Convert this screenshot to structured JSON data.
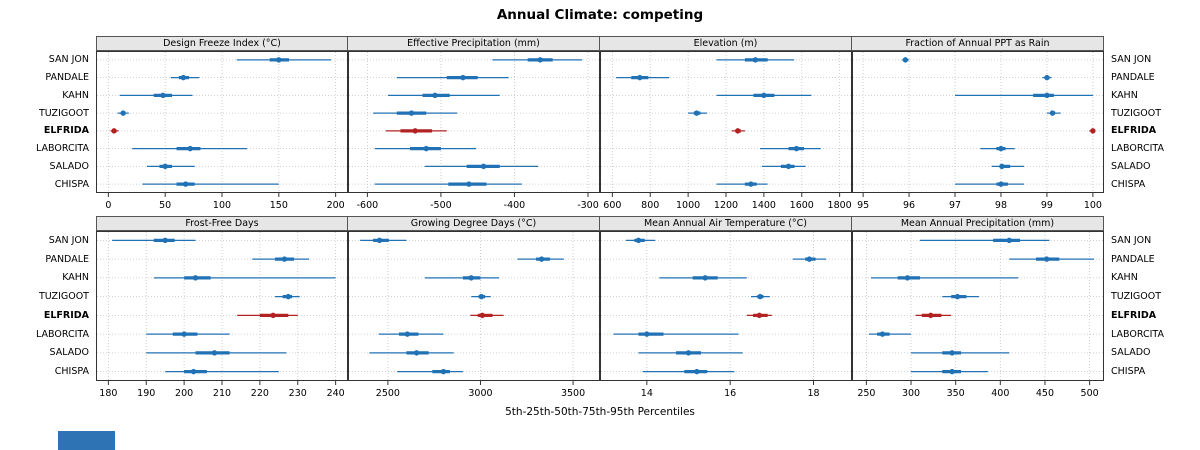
{
  "title": "Annual Climate: competing",
  "caption": "5th-25th-50th-75th-95th Percentiles",
  "stations": [
    "SAN JON",
    "PANDALE",
    "KAHN",
    "TUZIGOOT",
    "ELFRIDA",
    "LABORCITA",
    "SALADO",
    "CHISPA"
  ],
  "highlight_station": "ELFRIDA",
  "colors": {
    "normal": "#2171b5",
    "highlight": "#b22222",
    "strip_bg": "#e6e6e6",
    "grid": "#c3c3c3",
    "border": "#333333",
    "accent_box": "#2e74b5"
  },
  "panel_layout": {
    "rows": 2,
    "cols": 4
  },
  "chart_data": [
    {
      "type": "dotplot",
      "title": "Design Freeze Index (°C)",
      "xlim": [
        -10,
        210
      ],
      "ticks": [
        0,
        50,
        100,
        150,
        200
      ],
      "percentiles": [
        5,
        25,
        50,
        75,
        95
      ],
      "values": [
        [
          113,
          142,
          150,
          159,
          196
        ],
        [
          55,
          62,
          66,
          71,
          80
        ],
        [
          10,
          40,
          48,
          56,
          74
        ],
        [
          8,
          11,
          13,
          15,
          18
        ],
        [
          2,
          4,
          5,
          7,
          9
        ],
        [
          21,
          60,
          72,
          81,
          122
        ],
        [
          34,
          45,
          50,
          56,
          76
        ],
        [
          30,
          60,
          68,
          76,
          150
        ]
      ]
    },
    {
      "type": "dotplot",
      "title": "Effective Precipitation (mm)",
      "xlim": [
        -625,
        -285
      ],
      "ticks": [
        -600,
        -500,
        -400,
        -300
      ],
      "percentiles": [
        5,
        25,
        50,
        75,
        95
      ],
      "values": [
        [
          -430,
          -382,
          -365,
          -348,
          -308
        ],
        [
          -560,
          -492,
          -470,
          -450,
          -408
        ],
        [
          -572,
          -525,
          -508,
          -488,
          -420
        ],
        [
          -592,
          -560,
          -540,
          -520,
          -478
        ],
        [
          -575,
          -555,
          -535,
          -512,
          -492
        ],
        [
          -590,
          -542,
          -520,
          -500,
          -452
        ],
        [
          -522,
          -465,
          -442,
          -420,
          -368
        ],
        [
          -590,
          -490,
          -462,
          -438,
          -390
        ]
      ]
    },
    {
      "type": "dotplot",
      "title": "Elevation (m)",
      "xlim": [
        540,
        1860
      ],
      "ticks": [
        600,
        800,
        1000,
        1200,
        1400,
        1600,
        1800
      ],
      "percentiles": [
        5,
        25,
        50,
        75,
        95
      ],
      "values": [
        [
          1150,
          1300,
          1355,
          1420,
          1560
        ],
        [
          620,
          700,
          745,
          790,
          900
        ],
        [
          1150,
          1345,
          1400,
          1455,
          1650
        ],
        [
          1000,
          1030,
          1045,
          1065,
          1100
        ],
        [
          1230,
          1250,
          1262,
          1278,
          1300
        ],
        [
          1380,
          1530,
          1572,
          1612,
          1700
        ],
        [
          1390,
          1490,
          1530,
          1562,
          1620
        ],
        [
          1150,
          1300,
          1332,
          1362,
          1420
        ]
      ]
    },
    {
      "type": "dotplot",
      "title": "Fraction of Annual PPT as Rain",
      "xlim": [
        94.78,
        100.22
      ],
      "ticks": [
        95,
        96,
        97,
        98,
        99,
        100
      ],
      "percentiles": [
        5,
        25,
        50,
        75,
        95
      ],
      "values": [
        [
          95.85,
          95.9,
          95.92,
          95.95,
          96.0
        ],
        [
          98.9,
          98.98,
          99.0,
          99.05,
          99.1
        ],
        [
          97.0,
          98.7,
          99.0,
          99.15,
          100.0
        ],
        [
          99.0,
          99.08,
          99.12,
          99.18,
          99.3
        ],
        [
          99.92,
          99.97,
          100.0,
          100.0,
          100.0
        ],
        [
          97.55,
          97.9,
          98.0,
          98.1,
          98.3
        ],
        [
          97.8,
          97.98,
          98.02,
          98.2,
          98.5
        ],
        [
          97.0,
          97.9,
          98.0,
          98.15,
          98.5
        ]
      ]
    },
    {
      "type": "dotplot",
      "title": "Frost-Free Days",
      "xlim": [
        177,
        243
      ],
      "ticks": [
        180,
        190,
        200,
        210,
        220,
        230,
        240
      ],
      "percentiles": [
        5,
        25,
        50,
        75,
        95
      ],
      "values": [
        [
          181,
          192,
          195,
          197.5,
          203
        ],
        [
          218,
          224,
          226.5,
          229,
          233
        ],
        [
          192,
          200,
          203,
          207,
          240
        ],
        [
          224,
          226,
          227.5,
          228.5,
          230.5
        ],
        [
          214,
          220,
          223.5,
          227.5,
          230
        ],
        [
          190,
          197,
          200,
          203.5,
          212
        ],
        [
          190,
          203,
          208,
          212,
          227
        ],
        [
          195,
          200,
          202.5,
          206,
          225
        ]
      ]
    },
    {
      "type": "dotplot",
      "title": "Growing Degree Days (°C)",
      "xlim": [
        2290,
        3640
      ],
      "ticks": [
        2500,
        3000,
        3500
      ],
      "percentiles": [
        5,
        25,
        50,
        75,
        95
      ],
      "values": [
        [
          2350,
          2420,
          2455,
          2505,
          2600
        ],
        [
          3200,
          3300,
          3330,
          3375,
          3450
        ],
        [
          2700,
          2905,
          2950,
          3000,
          3100
        ],
        [
          2950,
          2990,
          3005,
          3025,
          3055
        ],
        [
          2945,
          2985,
          3010,
          3065,
          3125
        ],
        [
          2450,
          2560,
          2605,
          2665,
          2800
        ],
        [
          2400,
          2600,
          2655,
          2720,
          2855
        ],
        [
          2550,
          2740,
          2800,
          2835,
          2905
        ]
      ]
    },
    {
      "type": "dotplot",
      "title": "Mean Annual Air Temperature (°C)",
      "xlim": [
        12.9,
        18.9
      ],
      "ticks": [
        14,
        16,
        18
      ],
      "percentiles": [
        5,
        25,
        50,
        75,
        95
      ],
      "values": [
        [
          13.5,
          13.7,
          13.8,
          13.95,
          14.2
        ],
        [
          17.5,
          17.8,
          17.9,
          18.05,
          18.3
        ],
        [
          14.3,
          15.1,
          15.4,
          15.7,
          16.4
        ],
        [
          16.5,
          16.65,
          16.72,
          16.8,
          16.95
        ],
        [
          16.4,
          16.55,
          16.7,
          16.9,
          17.0
        ],
        [
          13.2,
          13.8,
          14.0,
          14.4,
          16.2
        ],
        [
          13.8,
          14.7,
          15.0,
          15.3,
          16.3
        ],
        [
          13.9,
          14.9,
          15.2,
          15.45,
          16.1
        ]
      ]
    },
    {
      "type": "dotplot",
      "title": "Mean Annual Precipitation (mm)",
      "xlim": [
        235,
        515
      ],
      "ticks": [
        250,
        300,
        350,
        400,
        450,
        500
      ],
      "percentiles": [
        5,
        25,
        50,
        75,
        95
      ],
      "values": [
        [
          310,
          392,
          410,
          422,
          455
        ],
        [
          410,
          440,
          452,
          466,
          505
        ],
        [
          255,
          285,
          296,
          310,
          420
        ],
        [
          335,
          345,
          352,
          362,
          376
        ],
        [
          305,
          312,
          322,
          334,
          345
        ],
        [
          253,
          262,
          268,
          276,
          300
        ],
        [
          300,
          335,
          346,
          356,
          410
        ],
        [
          300,
          335,
          346,
          356,
          386
        ]
      ]
    }
  ]
}
